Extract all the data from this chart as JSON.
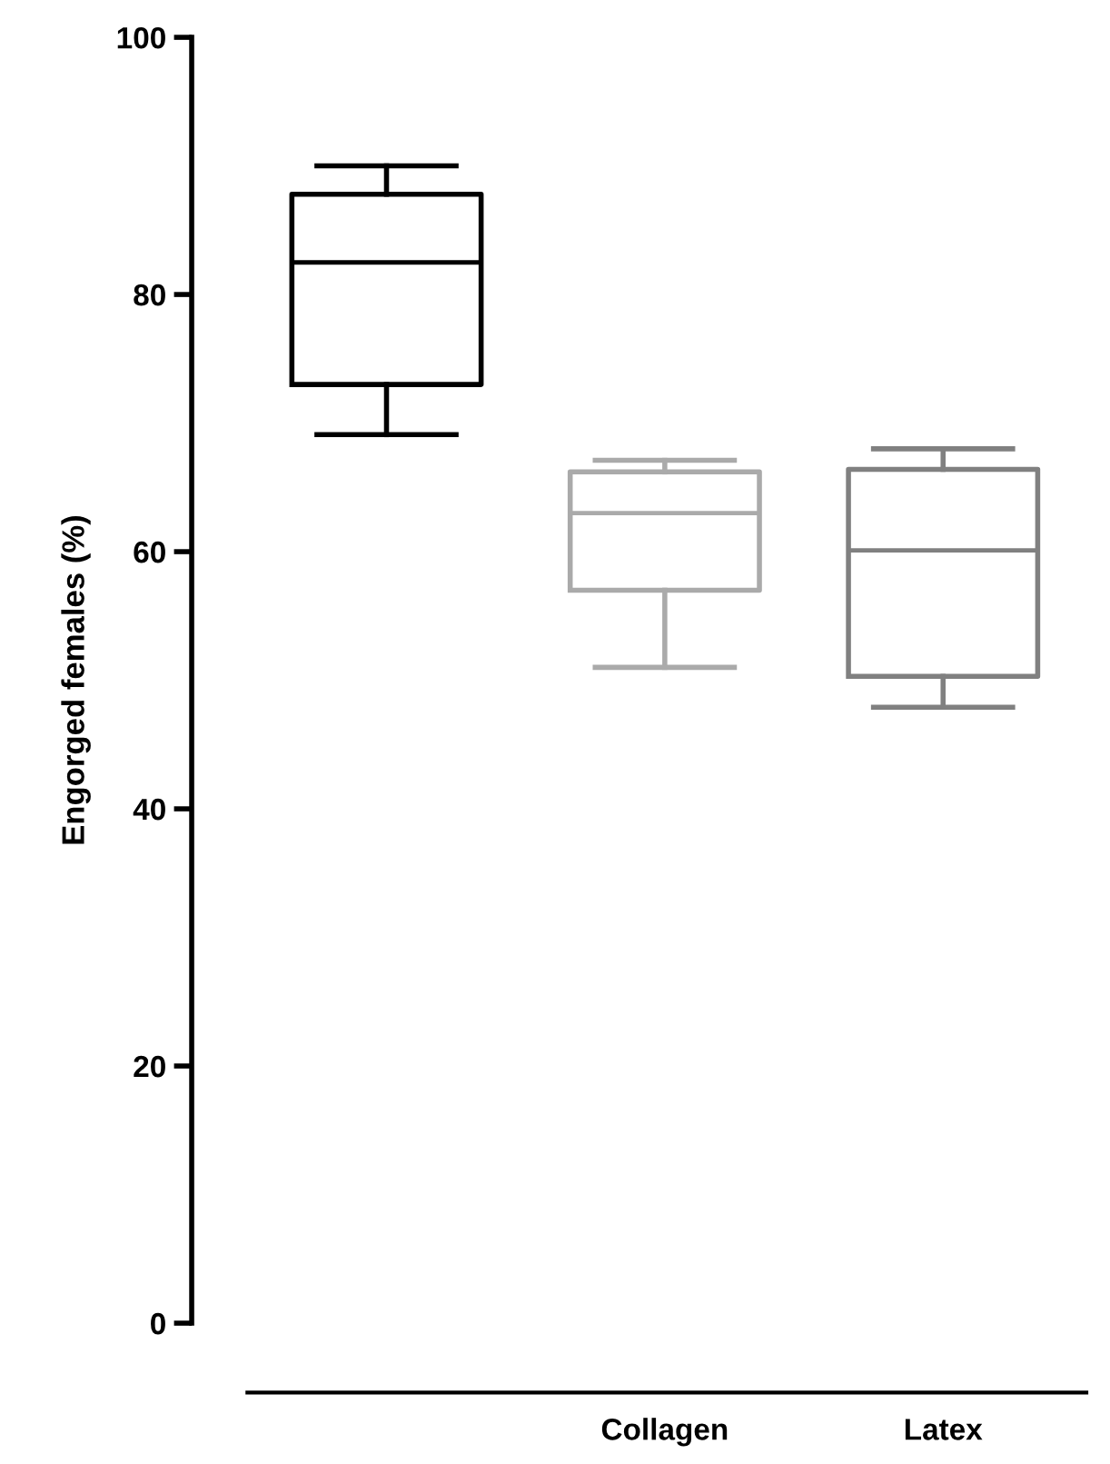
{
  "chart_data": {
    "type": "box",
    "ylabel": "Engorged females (%)",
    "categories": [
      null,
      "Collagen",
      "Latex"
    ],
    "boxes": [
      {
        "low": 69.1,
        "q1": 73.0,
        "median": 82.5,
        "q3": 87.8,
        "high": 90.0
      },
      {
        "low": 51.0,
        "q1": 57.0,
        "median": 63.0,
        "q3": 66.2,
        "high": 67.1
      },
      {
        "low": 47.9,
        "q1": 50.3,
        "median": 60.1,
        "q3": 66.4,
        "high": 68.0
      }
    ],
    "colors": [
      "#000000",
      "#aaaaaa",
      "#808080"
    ],
    "ylim": [
      0,
      100
    ],
    "yticks": [
      0,
      20,
      40,
      60,
      80,
      100
    ],
    "grid": false
  }
}
